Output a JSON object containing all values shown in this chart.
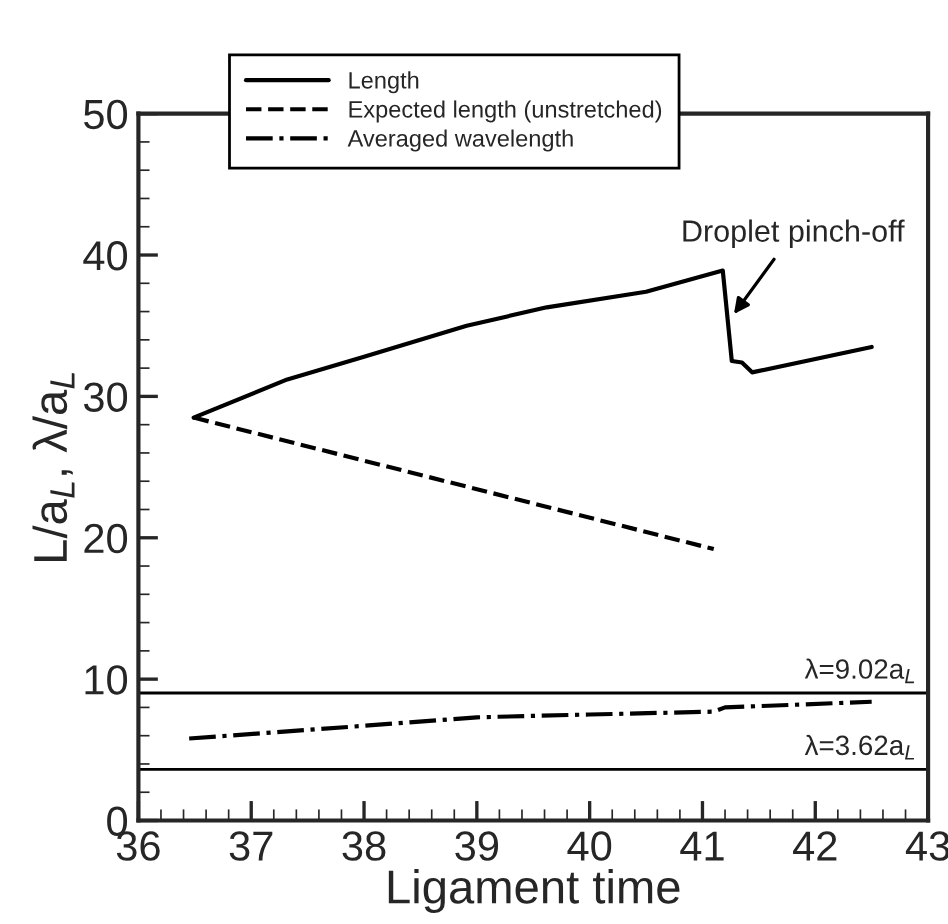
{
  "chart_data": {
    "type": "line",
    "xlabel": "Ligament time",
    "ylabel": "L/a$_{L}$, λ/a$_{L}$",
    "xlim": [
      36,
      43
    ],
    "ylim": [
      0,
      50
    ],
    "xticks": [
      36,
      37,
      38,
      39,
      40,
      41,
      42,
      43
    ],
    "yticks": [
      0,
      10,
      20,
      30,
      40,
      50
    ],
    "grid": false,
    "legend": "top",
    "marker": "none",
    "series": [
      {
        "name": "Length",
        "color": "#000000",
        "line_style": "solid",
        "x": [
          36.49,
          37.32,
          38.0,
          38.91,
          39.62,
          40.5,
          41.18,
          41.26,
          41.35,
          41.44,
          42.5
        ],
        "values": [
          28.5,
          31.2,
          32.8,
          35.0,
          36.3,
          37.4,
          38.9,
          32.5,
          32.4,
          31.7,
          33.5
        ]
      },
      {
        "name": "Expected length (unstretched)",
        "color": "#000000",
        "line_style": "dashed",
        "x": [
          36.49,
          41.1
        ],
        "values": [
          28.5,
          19.2
        ]
      },
      {
        "name": "Averaged wavelength",
        "color": "#000000",
        "line_style": "dashdot",
        "x": [
          36.45,
          38.0,
          39.0,
          40.0,
          41.1,
          41.2,
          42.5
        ],
        "values": [
          5.8,
          6.7,
          7.3,
          7.5,
          7.7,
          8.0,
          8.4
        ]
      }
    ],
    "ref_lines": [
      {
        "axis": "y",
        "value": 9.02,
        "label": "λ=9.02a$_{L}$",
        "color": "#000000"
      },
      {
        "axis": "y",
        "value": 3.62,
        "label": "λ=3.62a$_{L}$",
        "color": "#000000"
      }
    ],
    "annotations": [
      {
        "text": "Droplet pinch-off",
        "x": 41.25,
        "y": 35.5
      }
    ]
  }
}
